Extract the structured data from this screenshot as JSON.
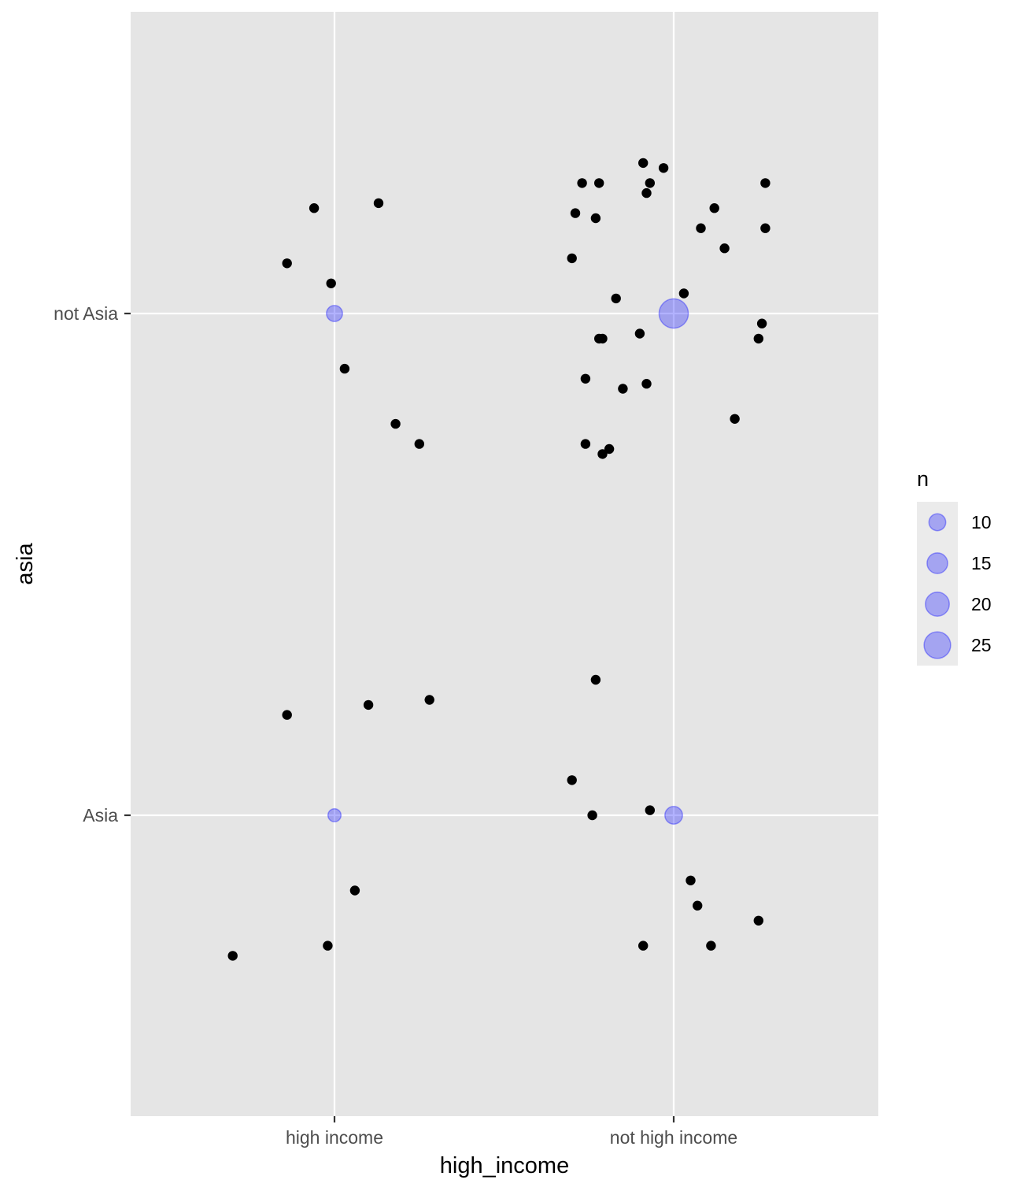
{
  "chart_data": {
    "type": "scatter",
    "xlabel": "high_income",
    "ylabel": "asia",
    "x_categories": [
      "high income",
      "not high income"
    ],
    "y_categories": [
      "Asia",
      "not Asia"
    ],
    "grid": true,
    "legend_position": "right",
    "colors": {
      "panel": "#e5e5e5",
      "grid": "#ffffff",
      "point": "#000000",
      "count_fill": "#0000ff",
      "count_alpha": 0.3
    },
    "count_points": {
      "series_name": "n",
      "points": [
        {
          "x": "high income",
          "y": "not Asia",
          "n": 9
        },
        {
          "x": "high income",
          "y": "Asia",
          "n": 6
        },
        {
          "x": "not high income",
          "y": "not Asia",
          "n": 30
        },
        {
          "x": "not high income",
          "y": "Asia",
          "n": 11
        }
      ]
    },
    "legend": {
      "title": "n",
      "breaks": [
        10,
        15,
        20,
        25
      ]
    },
    "jitter_points": [
      {
        "x": 0.94,
        "y": 2.21
      },
      {
        "x": 1.13,
        "y": 2.22
      },
      {
        "x": 0.86,
        "y": 2.1
      },
      {
        "x": 0.99,
        "y": 2.06
      },
      {
        "x": 1.03,
        "y": 1.89
      },
      {
        "x": 1.18,
        "y": 1.78
      },
      {
        "x": 1.25,
        "y": 1.74
      },
      {
        "x": 1.73,
        "y": 2.26
      },
      {
        "x": 1.78,
        "y": 2.26
      },
      {
        "x": 1.91,
        "y": 2.3
      },
      {
        "x": 1.97,
        "y": 2.29
      },
      {
        "x": 1.93,
        "y": 2.26
      },
      {
        "x": 1.92,
        "y": 2.24
      },
      {
        "x": 2.27,
        "y": 2.26
      },
      {
        "x": 1.71,
        "y": 2.2
      },
      {
        "x": 1.77,
        "y": 2.19
      },
      {
        "x": 2.12,
        "y": 2.21
      },
      {
        "x": 2.08,
        "y": 2.17
      },
      {
        "x": 2.27,
        "y": 2.17
      },
      {
        "x": 2.15,
        "y": 2.13
      },
      {
        "x": 1.7,
        "y": 2.11
      },
      {
        "x": 2.03,
        "y": 2.04
      },
      {
        "x": 1.83,
        "y": 2.03
      },
      {
        "x": 2.26,
        "y": 1.98
      },
      {
        "x": 1.9,
        "y": 1.96
      },
      {
        "x": 1.79,
        "y": 1.95
      },
      {
        "x": 1.78,
        "y": 1.95
      },
      {
        "x": 2.25,
        "y": 1.95
      },
      {
        "x": 1.74,
        "y": 1.87
      },
      {
        "x": 1.92,
        "y": 1.86
      },
      {
        "x": 1.85,
        "y": 1.85
      },
      {
        "x": 2.18,
        "y": 1.79
      },
      {
        "x": 1.74,
        "y": 1.74
      },
      {
        "x": 1.81,
        "y": 1.73
      },
      {
        "x": 1.79,
        "y": 1.72
      },
      {
        "x": 0.86,
        "y": 1.2
      },
      {
        "x": 1.1,
        "y": 1.22
      },
      {
        "x": 1.28,
        "y": 1.23
      },
      {
        "x": 1.77,
        "y": 1.27
      },
      {
        "x": 1.7,
        "y": 1.07
      },
      {
        "x": 1.76,
        "y": 1.0
      },
      {
        "x": 1.93,
        "y": 1.01
      },
      {
        "x": 1.06,
        "y": 0.85
      },
      {
        "x": 0.98,
        "y": 0.74
      },
      {
        "x": 0.7,
        "y": 0.72
      },
      {
        "x": 2.05,
        "y": 0.87
      },
      {
        "x": 2.07,
        "y": 0.82
      },
      {
        "x": 2.25,
        "y": 0.79
      },
      {
        "x": 1.91,
        "y": 0.74
      },
      {
        "x": 2.11,
        "y": 0.74
      }
    ]
  }
}
